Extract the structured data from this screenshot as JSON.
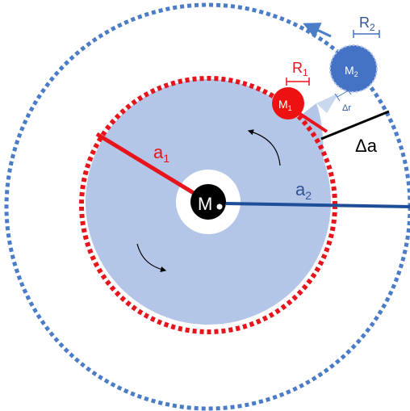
{
  "labels": {
    "central_mass": "M",
    "central_mass_sub": "*",
    "mass1": "M",
    "mass1_sub": "1",
    "mass2": "M",
    "mass2_sub": "2",
    "radius1": "R",
    "radius1_sub": "1",
    "radius2": "R",
    "radius2_sub": "2",
    "semi_major1": "a",
    "semi_major1_sub": "1",
    "semi_major2": "a",
    "semi_major2_sub": "2",
    "delta_a": "Δa",
    "delta_r": "Δr"
  },
  "colors": {
    "inner_orbit": "#e8141c",
    "outer_orbit": "#4a7cc8",
    "disk": "#b4c6e7",
    "disk_light": "#c9d7ef",
    "central_mass": "#000000",
    "mass1": "#ee1111",
    "mass2": "#4472c4",
    "a2_line": "#1f4e99",
    "delta_a_line": "#000000"
  },
  "icons": [
    "rotation-arrow-icon",
    "orbit-direction-arrow-icon"
  ]
}
